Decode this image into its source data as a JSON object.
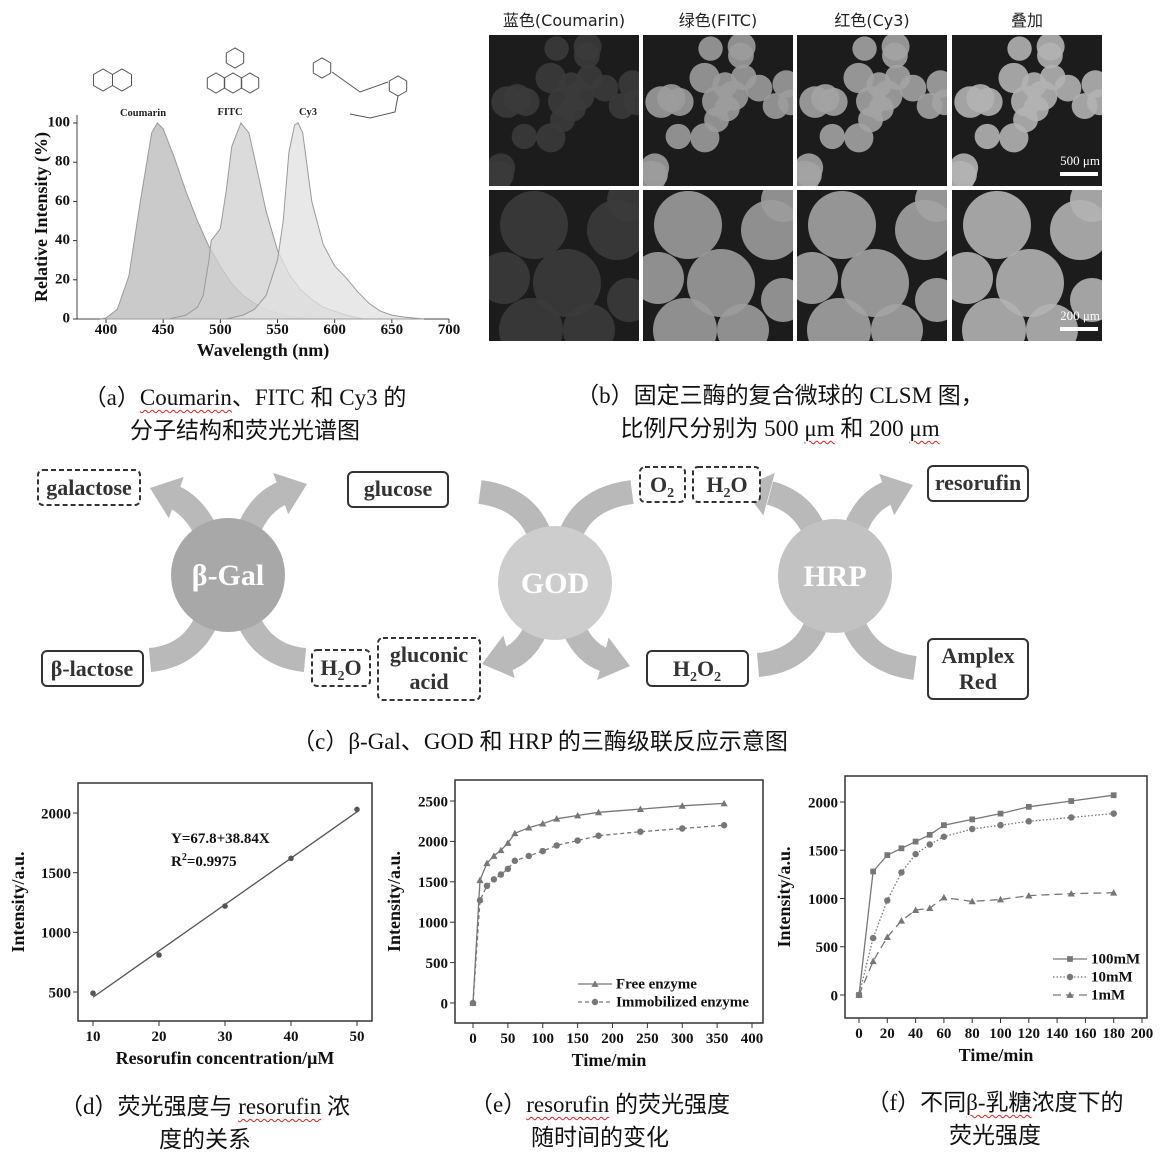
{
  "captions": {
    "a": {
      "prefix": "（a）",
      "w1": "Coumarin",
      "rest1": "、FITC 和 Cy3 的",
      "line2": "分子结构和荧光光谱图"
    },
    "b": {
      "line1": "（b）固定三酶的复合微球的 CLSM 图，",
      "line2a": "比例尺分别为 500 ",
      "um1": "μm",
      "line2b": " 和 200 ",
      "um2": "μm"
    },
    "c": "（c）β-Gal、GOD 和 HRP 的三酶级联反应示意图",
    "d": {
      "pre": "（d）荧光强度与 ",
      "w": "resorufin",
      "post": " 浓",
      "line2": "度的关系"
    },
    "e": {
      "pre": "（e）",
      "w": "resorufin",
      "post": " 的荧光强度",
      "line2": "随时间的变化"
    },
    "f": {
      "pre": "（f）不同",
      "w": "β-乳糖",
      "post": "浓度下的",
      "line2": "荧光强度"
    }
  },
  "molecules": [
    "Coumarin",
    "FITC",
    "Cy3"
  ],
  "clsm": {
    "columns": [
      "蓝色(Coumarin)",
      "绿色(FITC)",
      "红色(Cy3)",
      "叠加"
    ],
    "scale_bars": [
      "500 μm",
      "200 μm"
    ]
  },
  "diagram": {
    "enzymes": [
      "β-Gal",
      "GOD",
      "HRP"
    ],
    "species": {
      "galactose": "galactose",
      "glucose": "glucose",
      "o2": "O",
      "o2_sub": "2",
      "h2o_top_h": "H",
      "h2o_top_sub": "2",
      "h2o_top_o": "O",
      "resorufin": "resorufin",
      "lactose": "β-lactose",
      "h2o_bot_h": "H",
      "h2o_bot_sub": "2",
      "h2o_bot_o": "O",
      "gluconic1": "gluconic",
      "gluconic2": "acid",
      "h2o2_h": "H",
      "h2o2_sub1": "2",
      "h2o2_o": "O",
      "h2o2_sub2": "2",
      "amplex1": "Amplex",
      "amplex2": "Red"
    },
    "colors": {
      "bgal": "#a8a8a8",
      "god": "#cdcdcd",
      "hrp": "#c2c2c2",
      "arrow": "#b9b9b9"
    }
  },
  "chart_data": [
    {
      "id": "a",
      "type": "area",
      "xlabel": "Wavelength (nm)",
      "ylabel": "Relative Intensity (%)",
      "xlim": [
        375,
        700
      ],
      "ylim": [
        0,
        100
      ],
      "xticks": [
        400,
        450,
        500,
        550,
        600,
        650,
        700
      ],
      "yticks": [
        0,
        20,
        40,
        60,
        80,
        100
      ],
      "series": [
        {
          "name": "Coumarin",
          "color": "#b8b8b8",
          "x": [
            395,
            400,
            410,
            420,
            430,
            440,
            445,
            450,
            460,
            470,
            480,
            490,
            500,
            510,
            520,
            530,
            540,
            550,
            560,
            570,
            585
          ],
          "y": [
            0,
            0.5,
            5,
            22,
            60,
            95,
            100,
            97,
            82,
            65,
            50,
            37,
            27,
            18,
            12,
            8,
            5,
            3,
            1.5,
            0.5,
            0
          ]
        },
        {
          "name": "FITC",
          "color": "#cfcfcf",
          "x": [
            455,
            470,
            480,
            485,
            490,
            492,
            500,
            505,
            510,
            518,
            525,
            530,
            540,
            550,
            560,
            570,
            580,
            590,
            600,
            610,
            625
          ],
          "y": [
            0,
            2,
            6,
            12,
            30,
            40,
            46,
            65,
            88,
            100,
            95,
            82,
            55,
            35,
            23,
            15,
            10,
            6,
            4,
            2,
            0
          ]
        },
        {
          "name": "Cy3",
          "color": "#e0e0e0",
          "x": [
            505,
            520,
            530,
            540,
            550,
            555,
            560,
            565,
            568,
            572,
            580,
            590,
            600,
            610,
            620,
            630,
            640,
            650,
            660,
            678
          ],
          "y": [
            0,
            2,
            5,
            12,
            30,
            50,
            85,
            99,
            100,
            95,
            60,
            38,
            27,
            21,
            14,
            8,
            4,
            2,
            1,
            0
          ]
        }
      ]
    },
    {
      "id": "d",
      "type": "scatter",
      "xlabel": "Resorufin concentration/μM",
      "ylabel": "Intensity/a.u.",
      "xlim": [
        8,
        52
      ],
      "ylim": [
        250,
        2250
      ],
      "xticks": [
        10,
        20,
        30,
        40,
        50
      ],
      "yticks": [
        500,
        1000,
        1500,
        2000
      ],
      "series": [
        {
          "name": "data",
          "x": [
            10,
            20,
            30,
            40,
            50
          ],
          "y": [
            490,
            810,
            1220,
            1620,
            2030
          ]
        }
      ],
      "fit": {
        "intercept": 67.8,
        "slope": 38.84,
        "from": 10,
        "to": 50
      },
      "annotations": [
        "Y=67.8+38.84X",
        "R",
        "2",
        "=0.9975"
      ]
    },
    {
      "id": "e",
      "type": "line",
      "xlabel": "Time/min",
      "ylabel": "Intensity/a.u.",
      "xlim": [
        -25,
        400
      ],
      "ylim": [
        -250,
        2750
      ],
      "xticks": [
        0,
        50,
        100,
        150,
        200,
        250,
        300,
        350,
        400
      ],
      "yticks": [
        0,
        500,
        1000,
        1500,
        2000,
        2500
      ],
      "legend": "bottom-right",
      "series": [
        {
          "name": "Free enzyme",
          "marker": "triangle",
          "dash": "",
          "x": [
            0,
            10,
            20,
            30,
            40,
            50,
            60,
            80,
            100,
            120,
            150,
            180,
            240,
            300,
            360
          ],
          "y": [
            0,
            1520,
            1730,
            1820,
            1890,
            1980,
            2100,
            2170,
            2220,
            2280,
            2320,
            2360,
            2400,
            2440,
            2470
          ]
        },
        {
          "name": "Immobilized enzyme",
          "marker": "circle",
          "dash": "4,3",
          "x": [
            0,
            10,
            20,
            30,
            40,
            50,
            60,
            80,
            100,
            120,
            150,
            180,
            240,
            300,
            360
          ],
          "y": [
            0,
            1270,
            1450,
            1530,
            1590,
            1660,
            1760,
            1820,
            1880,
            1950,
            2010,
            2070,
            2120,
            2160,
            2200
          ]
        }
      ]
    },
    {
      "id": "f",
      "type": "line",
      "xlabel": "Time/min",
      "ylabel": "Intensity/a.u.",
      "xlim": [
        -8,
        205
      ],
      "ylim": [
        -250,
        2250
      ],
      "xticks": [
        0,
        20,
        40,
        60,
        80,
        100,
        120,
        140,
        160,
        180,
        200
      ],
      "yticks": [
        0,
        500,
        1000,
        1500,
        2000
      ],
      "legend": "bottom-right",
      "series": [
        {
          "name": "100mM",
          "marker": "square",
          "dash": "",
          "x": [
            0,
            10,
            20,
            30,
            40,
            50,
            60,
            80,
            100,
            120,
            150,
            180
          ],
          "y": [
            0,
            1280,
            1450,
            1520,
            1590,
            1660,
            1760,
            1820,
            1880,
            1950,
            2010,
            2070
          ]
        },
        {
          "name": "10mM",
          "marker": "circle",
          "dash": "1.5,2",
          "x": [
            0,
            10,
            20,
            30,
            40,
            50,
            60,
            80,
            100,
            120,
            150,
            180
          ],
          "y": [
            0,
            590,
            980,
            1270,
            1460,
            1560,
            1640,
            1720,
            1760,
            1800,
            1840,
            1880
          ]
        },
        {
          "name": "1mM",
          "marker": "triangle",
          "dash": "8,5",
          "x": [
            0,
            10,
            20,
            30,
            40,
            50,
            60,
            80,
            100,
            120,
            150,
            180
          ],
          "y": [
            0,
            350,
            600,
            770,
            880,
            900,
            1010,
            970,
            990,
            1030,
            1050,
            1060
          ]
        }
      ]
    }
  ]
}
